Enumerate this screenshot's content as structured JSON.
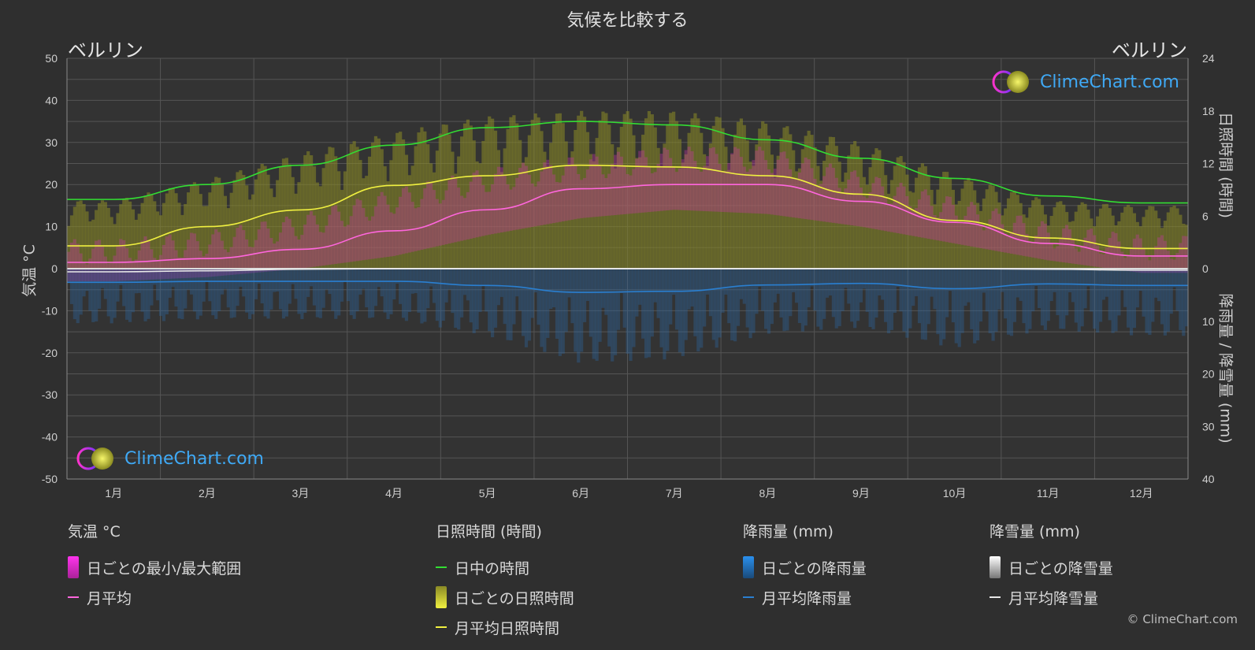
{
  "title": "気候を比較する",
  "location_left": "ベルリン",
  "location_right": "ベルリン",
  "axis": {
    "left_title": "気温 °C",
    "right_top_title": "日照時間 (時間)",
    "right_bottom_title": "降雨量 / 降雪量 (mm)"
  },
  "logo_text": "ClimeChart.com",
  "copyright": "© ClimeChart.com",
  "legend": {
    "temp": {
      "title": "気温 °C",
      "range": "日ごとの最小/最大範囲",
      "avg": "月平均"
    },
    "sun": {
      "title": "日照時間 (時間)",
      "daylight": "日中の時間",
      "daily_sun": "日ごとの日照時間",
      "avg_sun": "月平均日照時間"
    },
    "rain": {
      "title": "降雨量 (mm)",
      "daily": "日ごとの降雨量",
      "avg": "月平均降雨量"
    },
    "snow": {
      "title": "降雪量 (mm)",
      "daily": "日ごとの降雪量",
      "avg": "月平均降雪量"
    }
  },
  "colors": {
    "daylight": "#33dd33",
    "sunshine_avg": "#f0f040",
    "temp_avg": "#ff66dd",
    "temp_range": "#cc33aa",
    "sunshine_daily": "#9a9a2a",
    "rain": "#2a7fd0",
    "snow": "#e8e8e8"
  },
  "chart_data": {
    "type": "line",
    "months": [
      "1月",
      "2月",
      "3月",
      "4月",
      "5月",
      "6月",
      "7月",
      "8月",
      "9月",
      "10月",
      "11月",
      "12月"
    ],
    "left_axis": {
      "ylim": [
        -50,
        50
      ],
      "ticks": [
        "50",
        "40",
        "30",
        "20",
        "10",
        "0",
        "-10",
        "-20",
        "-30",
        "-40",
        "-50"
      ]
    },
    "right_axis_sun": {
      "ylim": [
        0,
        24
      ],
      "ticks": [
        "24",
        "18",
        "12",
        "6",
        "0"
      ]
    },
    "right_axis_precip": {
      "ylim": [
        0,
        40
      ],
      "ticks": [
        "0",
        "10",
        "20",
        "30",
        "40"
      ]
    },
    "series": [
      {
        "name": "日中の時間",
        "axis": "sun",
        "values": [
          7.9,
          9.6,
          11.8,
          14.1,
          16.1,
          16.8,
          16.4,
          14.7,
          12.6,
          10.3,
          8.3,
          7.5
        ]
      },
      {
        "name": "月平均日照時間",
        "axis": "sun",
        "values": [
          2.6,
          4.8,
          6.7,
          9.5,
          10.6,
          11.8,
          11.6,
          10.6,
          8.5,
          5.5,
          3.5,
          2.3
        ]
      },
      {
        "name": "月平均",
        "axis": "temp",
        "values": [
          1.5,
          2.4,
          4.6,
          9.0,
          14.0,
          19.0,
          20.0,
          20.0,
          16.0,
          11.0,
          6.0,
          3.0
        ]
      },
      {
        "name": "月平均降雨量",
        "axis": "precip",
        "values": [
          2.6,
          2.4,
          2.4,
          2.4,
          3.2,
          4.5,
          4.3,
          3.1,
          2.8,
          3.8,
          2.9,
          3.2
        ]
      },
      {
        "name": "月平均降雪量",
        "axis": "precip",
        "values": [
          0.6,
          0.4,
          0.1,
          0,
          0,
          0,
          0,
          0,
          0,
          0,
          0.1,
          0.3
        ]
      }
    ],
    "daily_temp_range": {
      "min": [
        -3,
        -2,
        0,
        3,
        8,
        12,
        14,
        13,
        10,
        6,
        2,
        -1
      ],
      "max": [
        4,
        6,
        10,
        16,
        21,
        24,
        26,
        26,
        20,
        14,
        8,
        5
      ]
    },
    "daily_sunshine_max": [
      6.5,
      8.5,
      11,
      13,
      14.5,
      15,
      15,
      14,
      12,
      9,
      6.5,
      6
    ]
  }
}
